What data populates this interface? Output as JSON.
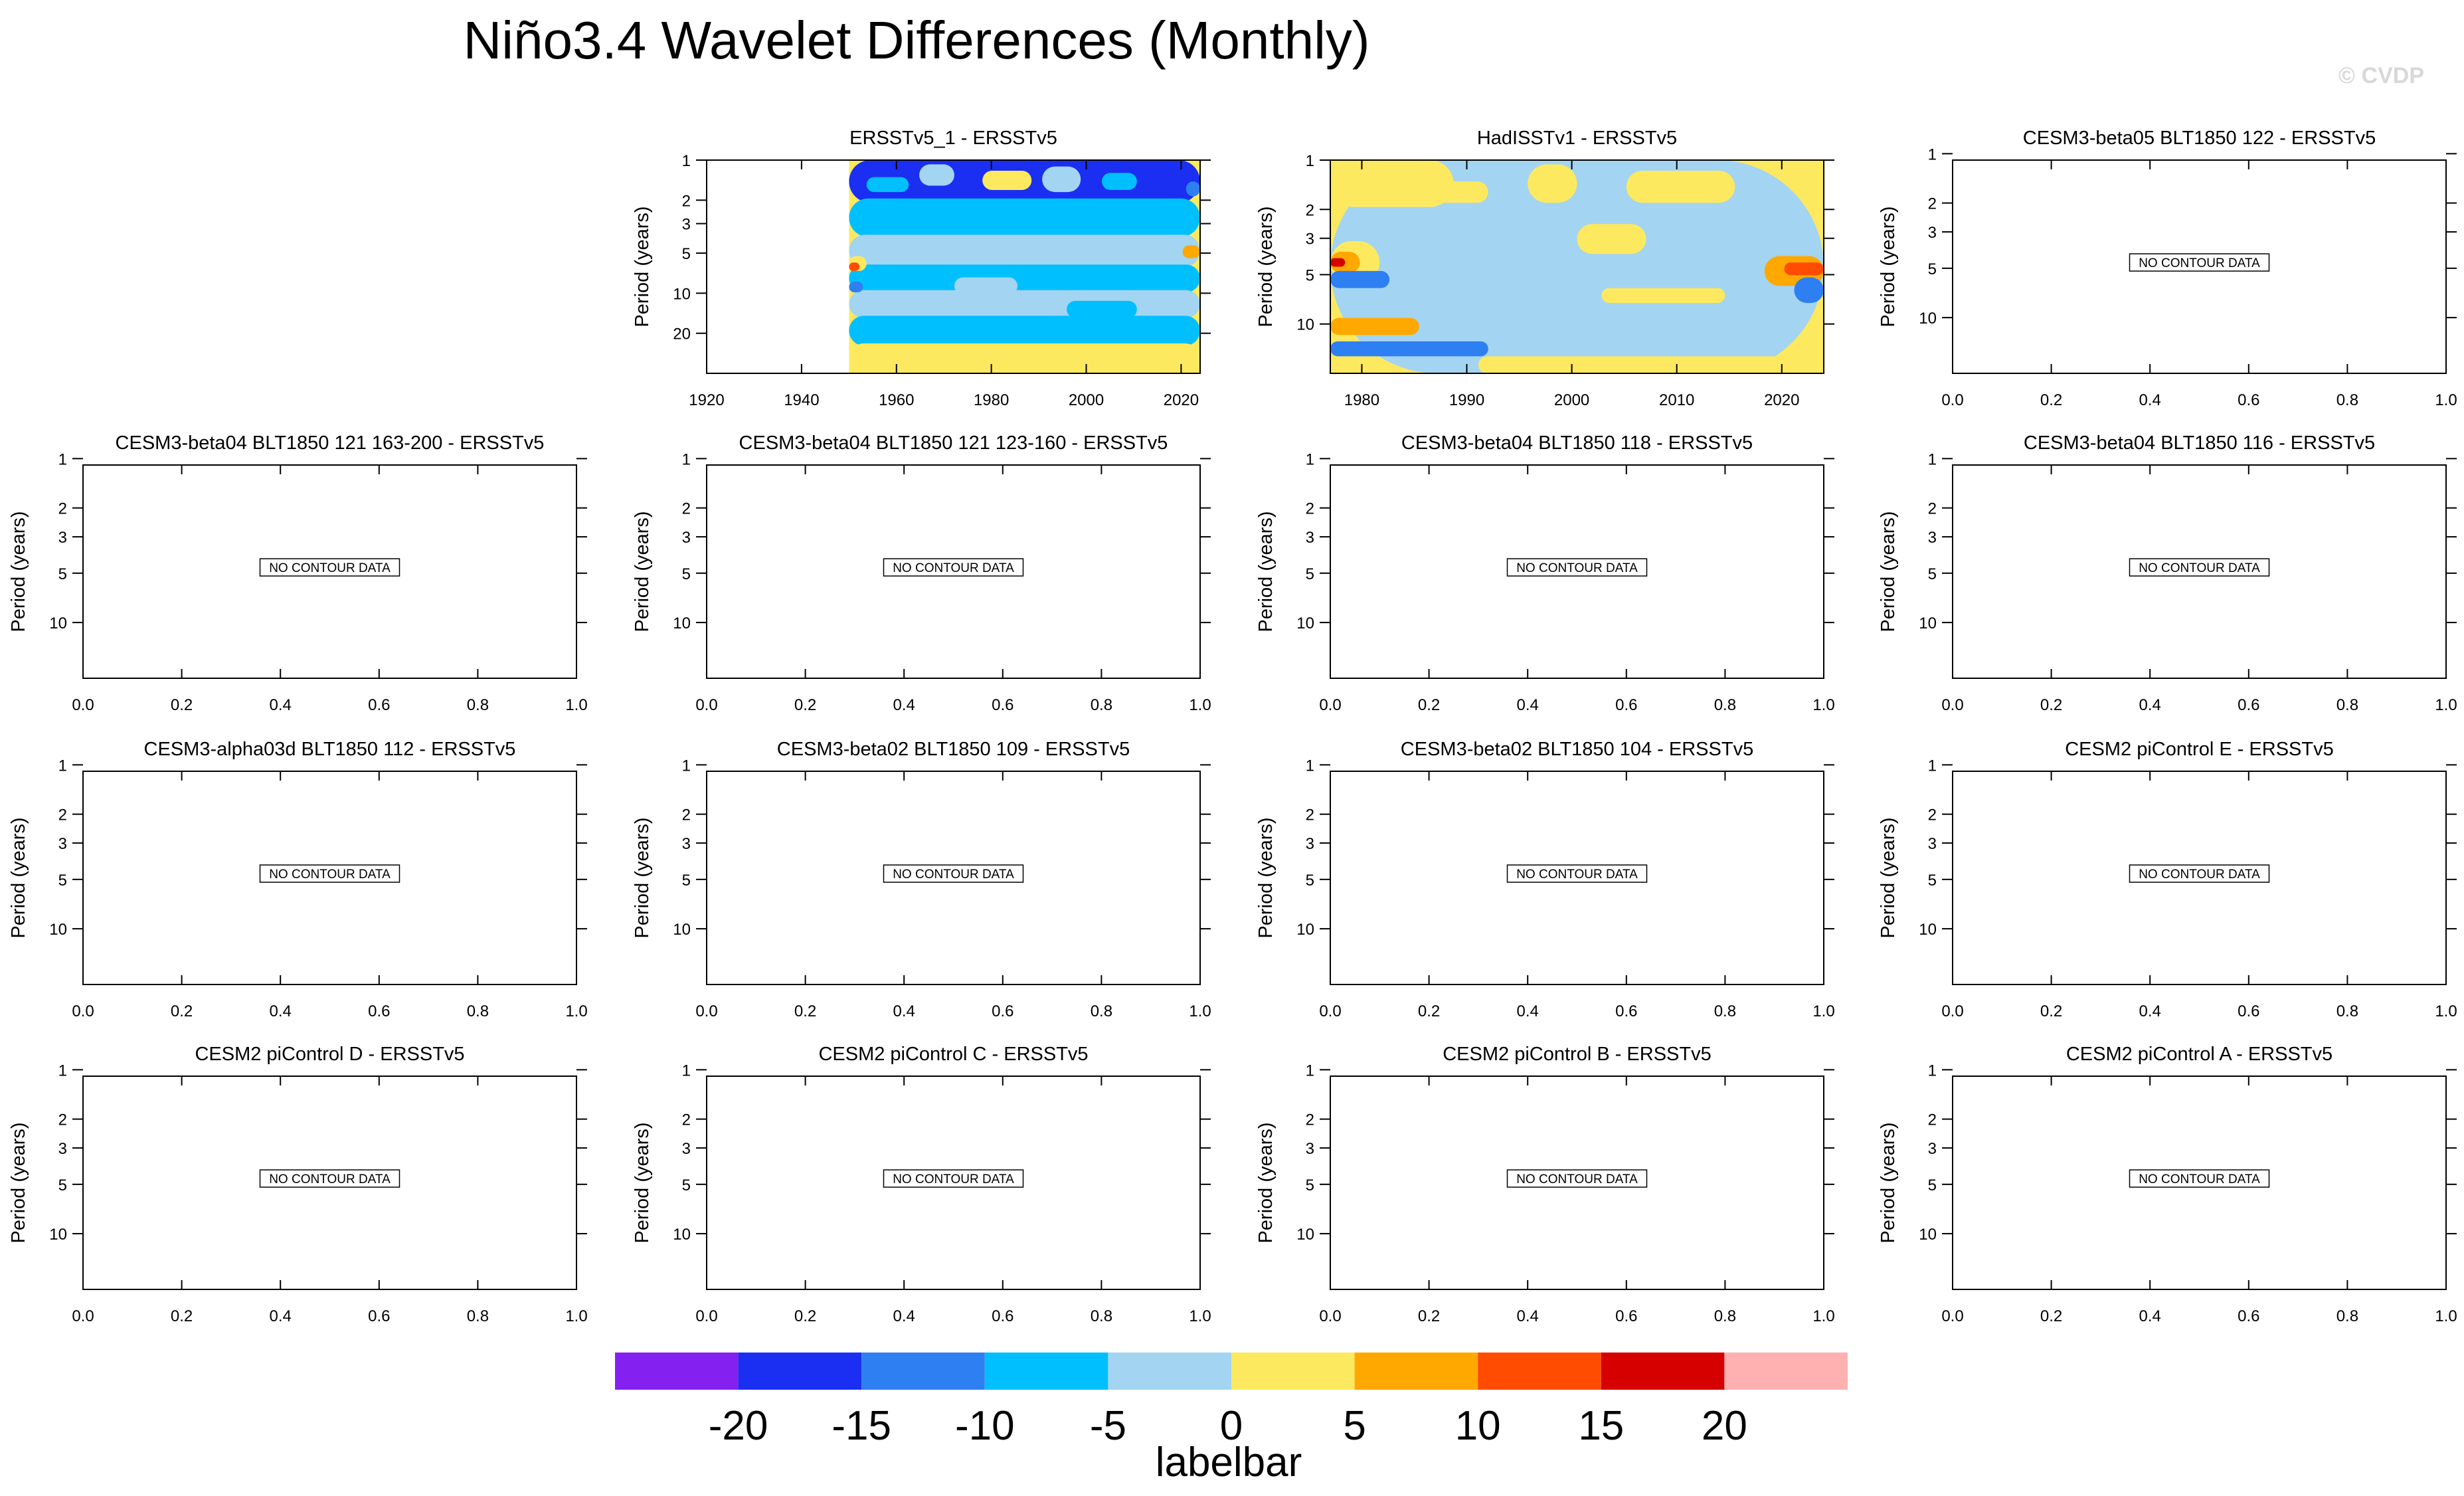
{
  "title": "Niño3.4 Wavelet Differences (Monthly)",
  "copyright": "© CVDP",
  "colorbar": {
    "label": "labelbar",
    "ticks": [
      "-20",
      "-15",
      "-10",
      "-5",
      "0",
      "5",
      "10",
      "15",
      "20"
    ],
    "colors": [
      "#8421f0",
      "#1a2ff2",
      "#2e7ff2",
      "#00bfff",
      "#a3d4f1",
      "#fde95f",
      "#ffa800",
      "#ff4c00",
      "#d60000",
      "#ffb1b1"
    ]
  },
  "chart_data": [
    {
      "type": "heatmap",
      "title": "ERSSTv5_1 - ERSSTv5",
      "ylabel": "Period (years)",
      "xlim": [
        1920,
        2024
      ],
      "data_start": 1950,
      "xticks": [
        "1920",
        "1940",
        "1960",
        "1980",
        "2000",
        "2020"
      ],
      "ylim": [
        1,
        40
      ],
      "yticks": [
        "1",
        "2",
        "3",
        "5",
        "10",
        "20"
      ],
      "no_data": false
    },
    {
      "type": "heatmap",
      "title": "HadISSTv1 - ERSSTv5",
      "ylabel": "Period (years)",
      "xlim": [
        1977,
        2024
      ],
      "xticks": [
        "1980",
        "1990",
        "2000",
        "2010",
        "2020"
      ],
      "ylim": [
        1,
        20
      ],
      "yticks": [
        "1",
        "2",
        "3",
        "5",
        "10"
      ],
      "no_data": false
    },
    {
      "type": "heatmap",
      "title": "CESM3-beta05 BLT1850 122 - ERSSTv5",
      "ylabel": "Period (years)",
      "xticks": [
        "0.0",
        "0.2",
        "0.4",
        "0.6",
        "0.8",
        "1.0"
      ],
      "yticks": [
        "1",
        "2",
        "3",
        "5",
        "10"
      ],
      "no_data": true,
      "no_data_label": "NO CONTOUR DATA"
    },
    {
      "type": "heatmap",
      "title": "CESM3-beta04 BLT1850 121 163-200 - ERSSTv5",
      "ylabel": "Period (years)",
      "xticks": [
        "0.0",
        "0.2",
        "0.4",
        "0.6",
        "0.8",
        "1.0"
      ],
      "yticks": [
        "1",
        "2",
        "3",
        "5",
        "10"
      ],
      "no_data": true,
      "no_data_label": "NO CONTOUR DATA"
    },
    {
      "type": "heatmap",
      "title": "CESM3-beta04 BLT1850 121 123-160 - ERSSTv5",
      "ylabel": "Period (years)",
      "xticks": [
        "0.0",
        "0.2",
        "0.4",
        "0.6",
        "0.8",
        "1.0"
      ],
      "yticks": [
        "1",
        "2",
        "3",
        "5",
        "10"
      ],
      "no_data": true,
      "no_data_label": "NO CONTOUR DATA"
    },
    {
      "type": "heatmap",
      "title": "CESM3-beta04 BLT1850 118 - ERSSTv5",
      "ylabel": "Period (years)",
      "xticks": [
        "0.0",
        "0.2",
        "0.4",
        "0.6",
        "0.8",
        "1.0"
      ],
      "yticks": [
        "1",
        "2",
        "3",
        "5",
        "10"
      ],
      "no_data": true,
      "no_data_label": "NO CONTOUR DATA"
    },
    {
      "type": "heatmap",
      "title": "CESM3-beta04 BLT1850 116 - ERSSTv5",
      "ylabel": "Period (years)",
      "xticks": [
        "0.0",
        "0.2",
        "0.4",
        "0.6",
        "0.8",
        "1.0"
      ],
      "yticks": [
        "1",
        "2",
        "3",
        "5",
        "10"
      ],
      "no_data": true,
      "no_data_label": "NO CONTOUR DATA"
    },
    {
      "type": "heatmap",
      "title": "CESM3-alpha03d BLT1850 112 - ERSSTv5",
      "ylabel": "Period (years)",
      "xticks": [
        "0.0",
        "0.2",
        "0.4",
        "0.6",
        "0.8",
        "1.0"
      ],
      "yticks": [
        "1",
        "2",
        "3",
        "5",
        "10"
      ],
      "no_data": true,
      "no_data_label": "NO CONTOUR DATA"
    },
    {
      "type": "heatmap",
      "title": "CESM3-beta02 BLT1850 109 - ERSSTv5",
      "ylabel": "Period (years)",
      "xticks": [
        "0.0",
        "0.2",
        "0.4",
        "0.6",
        "0.8",
        "1.0"
      ],
      "yticks": [
        "1",
        "2",
        "3",
        "5",
        "10"
      ],
      "no_data": true,
      "no_data_label": "NO CONTOUR DATA"
    },
    {
      "type": "heatmap",
      "title": "CESM3-beta02 BLT1850 104 - ERSSTv5",
      "ylabel": "Period (years)",
      "xticks": [
        "0.0",
        "0.2",
        "0.4",
        "0.6",
        "0.8",
        "1.0"
      ],
      "yticks": [
        "1",
        "2",
        "3",
        "5",
        "10"
      ],
      "no_data": true,
      "no_data_label": "NO CONTOUR DATA"
    },
    {
      "type": "heatmap",
      "title": "CESM2 piControl E - ERSSTv5",
      "ylabel": "Period (years)",
      "xticks": [
        "0.0",
        "0.2",
        "0.4",
        "0.6",
        "0.8",
        "1.0"
      ],
      "yticks": [
        "1",
        "2",
        "3",
        "5",
        "10"
      ],
      "no_data": true,
      "no_data_label": "NO CONTOUR DATA"
    },
    {
      "type": "heatmap",
      "title": "CESM2 piControl D - ERSSTv5",
      "ylabel": "Period (years)",
      "xticks": [
        "0.0",
        "0.2",
        "0.4",
        "0.6",
        "0.8",
        "1.0"
      ],
      "yticks": [
        "1",
        "2",
        "3",
        "5",
        "10"
      ],
      "no_data": true,
      "no_data_label": "NO CONTOUR DATA"
    },
    {
      "type": "heatmap",
      "title": "CESM2 piControl C - ERSSTv5",
      "ylabel": "Period (years)",
      "xticks": [
        "0.0",
        "0.2",
        "0.4",
        "0.6",
        "0.8",
        "1.0"
      ],
      "yticks": [
        "1",
        "2",
        "3",
        "5",
        "10"
      ],
      "no_data": true,
      "no_data_label": "NO CONTOUR DATA"
    },
    {
      "type": "heatmap",
      "title": "CESM2 piControl B - ERSSTv5",
      "ylabel": "Period (years)",
      "xticks": [
        "0.0",
        "0.2",
        "0.4",
        "0.6",
        "0.8",
        "1.0"
      ],
      "yticks": [
        "1",
        "2",
        "3",
        "5",
        "10"
      ],
      "no_data": true,
      "no_data_label": "NO CONTOUR DATA"
    },
    {
      "type": "heatmap",
      "title": "CESM2 piControl A - ERSSTv5",
      "ylabel": "Period (years)",
      "xticks": [
        "0.0",
        "0.2",
        "0.4",
        "0.6",
        "0.8",
        "1.0"
      ],
      "yticks": [
        "1",
        "2",
        "3",
        "5",
        "10"
      ],
      "no_data": true,
      "no_data_label": "NO CONTOUR DATA"
    }
  ]
}
